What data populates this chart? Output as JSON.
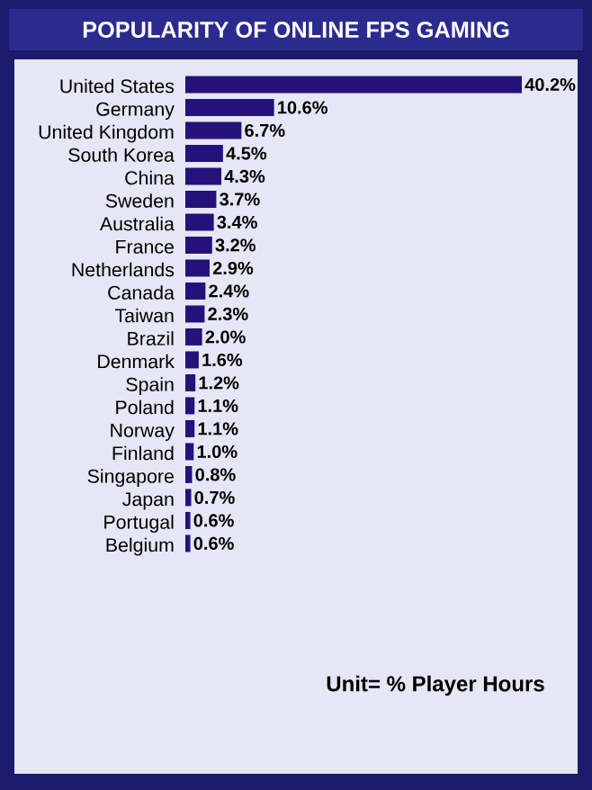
{
  "chart_data": {
    "type": "bar",
    "orientation": "horizontal",
    "title": "POPULARITY OF ONLINE FPS GAMING",
    "categories": [
      "United States",
      "Germany",
      "United Kingdom",
      "South Korea",
      "China",
      "Sweden",
      "Australia",
      "France",
      "Netherlands",
      "Canada",
      "Taiwan",
      "Brazil",
      "Denmark",
      "Spain",
      "Poland",
      "Norway",
      "Finland",
      "Singapore",
      "Japan",
      "Portugal",
      "Belgium"
    ],
    "values": [
      40.2,
      10.6,
      6.7,
      4.5,
      4.3,
      3.7,
      3.4,
      3.2,
      2.9,
      2.4,
      2.3,
      2.0,
      1.6,
      1.2,
      1.1,
      1.1,
      1.0,
      0.8,
      0.7,
      0.6,
      0.6
    ],
    "value_labels": [
      "40.2%",
      "10.6%",
      "6.7%",
      "4.5%",
      "4.3%",
      "3.7%",
      "3.4%",
      "3.2%",
      "2.9%",
      "2.4%",
      "2.3%",
      "2.0%",
      "1.6%",
      "1.2%",
      "1.1%",
      "1.1%",
      "1.0%",
      "0.8%",
      "0.7%",
      "0.6%",
      "0.6%"
    ],
    "color": "#24127a",
    "annotations": [
      "Unit= % Player Hours"
    ]
  }
}
